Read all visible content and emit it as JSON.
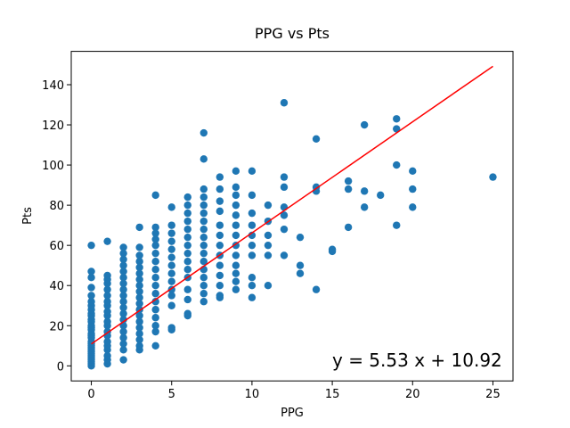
{
  "chart_data": {
    "type": "scatter",
    "title": "PPG vs Pts",
    "x_label": "PPG",
    "y_label": "Pts",
    "annotation": "y = 5.53 x + 10.92",
    "annotation_color": "#0000ff",
    "xlim": [
      -1.25,
      26.25
    ],
    "ylim": [
      -7.5,
      156.6
    ],
    "xticks": [
      0,
      5,
      10,
      15,
      20,
      25
    ],
    "yticks": [
      0,
      20,
      40,
      60,
      80,
      100,
      120,
      140
    ],
    "series": [
      {
        "type": "scatter",
        "color": "#1f77b4",
        "x": [
          0,
          0,
          0,
          0,
          0,
          0,
          0,
          0,
          0,
          0,
          0,
          0,
          0,
          0,
          0,
          0,
          0,
          0,
          0,
          0,
          0,
          0,
          0,
          0,
          0,
          0,
          0,
          0,
          0,
          0,
          0,
          1,
          1,
          1,
          1,
          1,
          1,
          1,
          1,
          1,
          1,
          1,
          1,
          1,
          1,
          1,
          1,
          1,
          1,
          1,
          1,
          2,
          2,
          2,
          2,
          2,
          2,
          2,
          2,
          2,
          2,
          2,
          2,
          2,
          2,
          2,
          2,
          2,
          2,
          2,
          3,
          3,
          3,
          3,
          3,
          3,
          3,
          3,
          3,
          3,
          3,
          3,
          3,
          3,
          3,
          3,
          3,
          3,
          3,
          4,
          4,
          4,
          4,
          4,
          4,
          4,
          4,
          4,
          4,
          4,
          4,
          4,
          4,
          4,
          4,
          4,
          5,
          5,
          5,
          5,
          5,
          5,
          5,
          5,
          5,
          5,
          5,
          5,
          5,
          5,
          6,
          6,
          6,
          6,
          6,
          6,
          6,
          6,
          6,
          6,
          6,
          6,
          6,
          6,
          6,
          7,
          7,
          7,
          7,
          7,
          7,
          7,
          7,
          7,
          7,
          7,
          7,
          7,
          7,
          7,
          7,
          7,
          8,
          8,
          8,
          8,
          8,
          8,
          8,
          8,
          8,
          8,
          8,
          8,
          8,
          9,
          9,
          9,
          9,
          9,
          9,
          9,
          9,
          9,
          9,
          9,
          9,
          9,
          10,
          10,
          10,
          10,
          10,
          10,
          10,
          10,
          10,
          10,
          11,
          11,
          11,
          11,
          11,
          11,
          12,
          12,
          12,
          12,
          12,
          12,
          12,
          13,
          13,
          13,
          14,
          14,
          14,
          14,
          15,
          15,
          16,
          16,
          16,
          17,
          17,
          17,
          18,
          19,
          19,
          19,
          19,
          20,
          20,
          20,
          25
        ],
        "values": [
          0,
          1,
          2,
          3,
          4,
          5,
          6,
          7,
          8,
          9,
          10,
          11,
          12,
          14,
          15,
          16,
          18,
          19,
          20,
          22,
          23,
          25,
          26,
          28,
          30,
          32,
          35,
          39,
          44,
          47,
          60,
          1,
          3,
          5,
          8,
          10,
          12,
          15,
          17,
          20,
          22,
          25,
          27,
          30,
          32,
          35,
          38,
          41,
          43,
          45,
          62,
          3,
          8,
          11,
          14,
          17,
          20,
          23,
          26,
          29,
          32,
          35,
          38,
          41,
          44,
          47,
          50,
          53,
          56,
          59,
          8,
          10,
          13,
          16,
          19,
          22,
          25,
          28,
          31,
          34,
          37,
          40,
          43,
          46,
          49,
          52,
          55,
          59,
          69,
          10,
          17,
          20,
          24,
          28,
          32,
          36,
          40,
          44,
          48,
          52,
          56,
          60,
          63,
          66,
          69,
          85,
          18,
          19,
          30,
          35,
          38,
          42,
          46,
          50,
          54,
          58,
          62,
          66,
          70,
          79,
          25,
          26,
          33,
          38,
          44,
          48,
          52,
          56,
          60,
          64,
          68,
          72,
          76,
          80,
          84,
          32,
          36,
          40,
          44,
          48,
          52,
          56,
          60,
          64,
          68,
          72,
          76,
          80,
          84,
          88,
          103,
          116,
          34,
          35,
          40,
          45,
          50,
          55,
          60,
          65,
          70,
          77,
          82,
          88,
          94,
          38,
          42,
          46,
          50,
          55,
          60,
          65,
          70,
          75,
          80,
          85,
          89,
          97,
          34,
          40,
          44,
          55,
          60,
          65,
          70,
          76,
          85,
          97,
          40,
          55,
          60,
          65,
          72,
          80,
          55,
          68,
          75,
          79,
          89,
          94,
          131,
          46,
          50,
          64,
          38,
          87,
          89,
          113,
          57,
          58,
          69,
          88,
          92,
          79,
          87,
          120,
          85,
          70,
          100,
          118,
          123,
          79,
          88,
          97,
          94
        ]
      },
      {
        "type": "line",
        "color": "#ff0000",
        "x": [
          0,
          25
        ],
        "values": [
          10.92,
          149.17
        ]
      }
    ]
  }
}
